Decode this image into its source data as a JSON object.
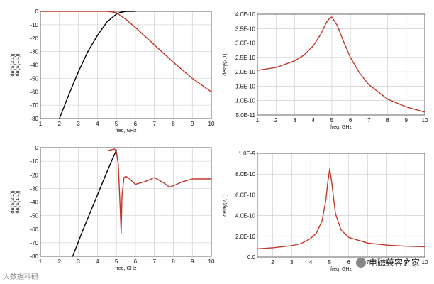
{
  "watermark": {
    "left": "大数据科研",
    "right": "电磁兼容之家"
  },
  "chart_data": [
    {
      "type": "line",
      "xlabel": "freq, GHz",
      "ylabel": [
        "dB(S(2,1))",
        "dB(S(1,1))"
      ],
      "xlim": [
        1,
        10
      ],
      "ylim": [
        -80,
        0
      ],
      "xticks": [
        "1",
        "2",
        "3",
        "4",
        "5",
        "6",
        "7",
        "8",
        "9",
        "10"
      ],
      "yticks": [
        "0",
        "-10",
        "-20",
        "-30",
        "-40",
        "-50",
        "-60",
        "-70",
        "-80"
      ],
      "series": [
        {
          "color": "#000000",
          "x": [
            2,
            2.5,
            3,
            3.5,
            4,
            4.5,
            5,
            5.2,
            5.5,
            6
          ],
          "y": [
            -80,
            -62,
            -45,
            -30,
            -18,
            -8,
            -2,
            -0.8,
            0,
            0
          ]
        },
        {
          "color": "#c0392b",
          "x": [
            1,
            2,
            3,
            4,
            4.5,
            4.8,
            5,
            5.5,
            6,
            7,
            8,
            9,
            10
          ],
          "y": [
            0,
            0,
            0,
            0,
            0,
            -0.5,
            -1,
            -6,
            -12,
            -25,
            -38,
            -50,
            -60
          ]
        }
      ]
    },
    {
      "type": "line",
      "xlabel": "freq, GHz",
      "ylabel": "delay(2,1)",
      "xlim": [
        1,
        10
      ],
      "ylim": [
        5e-11,
        4e-10
      ],
      "xticks": [
        "1",
        "2",
        "3",
        "4",
        "5",
        "6",
        "7",
        "8",
        "9",
        "10"
      ],
      "yticks": [
        "4.0E-10",
        "3.5E-10",
        "3.0E-10",
        "2.5E-10",
        "2.0E-10",
        "1.5E-10",
        "1.0E-10",
        "5.0E-11"
      ],
      "series": [
        {
          "color": "#c0392b",
          "x": [
            1,
            2,
            3,
            3.5,
            4,
            4.4,
            4.7,
            4.9,
            5.0,
            5.3,
            5.6,
            6,
            6.5,
            7,
            8,
            9,
            10
          ],
          "y": [
            2.05e-10,
            2.15e-10,
            2.38e-10,
            2.58e-10,
            2.9e-10,
            3.3e-10,
            3.7e-10,
            3.88e-10,
            3.9e-10,
            3.6e-10,
            3.1e-10,
            2.5e-10,
            1.95e-10,
            1.55e-10,
            1.05e-10,
            7.8e-11,
            6e-11
          ]
        }
      ]
    },
    {
      "type": "line",
      "xlabel": "freq, GHz",
      "ylabel": [
        "dB(S(2,1))",
        "dB(S(1,1))"
      ],
      "xlim": [
        1,
        10
      ],
      "ylim": [
        -80,
        0
      ],
      "xticks": [
        "1",
        "2",
        "3",
        "4",
        "5",
        "6",
        "7",
        "8",
        "9",
        "10"
      ],
      "yticks": [
        "0",
        "-10",
        "-20",
        "-30",
        "-40",
        "-50",
        "-60",
        "-70",
        "-80"
      ],
      "series": [
        {
          "color": "#000000",
          "x": [
            2.7,
            3.2,
            3.7,
            4.2,
            4.5,
            4.8,
            5.0
          ],
          "y": [
            -80,
            -62,
            -45,
            -28,
            -18,
            -8,
            -2
          ]
        },
        {
          "color": "#c0392b",
          "x": [
            4.6,
            4.9,
            5.0,
            5.1,
            5.2,
            5.25,
            5.3,
            5.4,
            5.5,
            5.7,
            6,
            6.5,
            7,
            7.5,
            7.8,
            8,
            8.5,
            9,
            9.5,
            10
          ],
          "y": [
            -2,
            -1,
            -3,
            -12,
            -45,
            -63,
            -35,
            -22,
            -21,
            -23,
            -27,
            -25,
            -22,
            -26,
            -29,
            -28,
            -25,
            -23,
            -23,
            -23
          ]
        }
      ]
    },
    {
      "type": "line",
      "xlabel": "freq, GHz",
      "ylabel": "delay(2,1)",
      "xlim": [
        1.2,
        10
      ],
      "ylim": [
        0,
        1e-09
      ],
      "xticks": [
        "2",
        "3",
        "4",
        "5",
        "6",
        "7",
        "8",
        "9",
        "10"
      ],
      "yticks": [
        "1.0E-9",
        "8.0E-10",
        "6.0E-10",
        "4.0E-10",
        "2.0E-10",
        "0.0"
      ],
      "series": [
        {
          "color": "#c0392b",
          "x": [
            1.2,
            2,
            3,
            3.5,
            4,
            4.3,
            4.6,
            4.8,
            4.9,
            5.0,
            5.1,
            5.3,
            5.6,
            6,
            7,
            8,
            9,
            10
          ],
          "y": [
            8e-11,
            9e-11,
            1.1e-10,
            1.3e-10,
            1.8e-10,
            2.3e-10,
            3.5e-10,
            5.5e-10,
            7.2e-10,
            8.5e-10,
            7.3e-10,
            4.2e-10,
            2.6e-10,
            1.9e-10,
            1.35e-10,
            1.15e-10,
            1.05e-10,
            1e-10
          ]
        }
      ]
    }
  ]
}
